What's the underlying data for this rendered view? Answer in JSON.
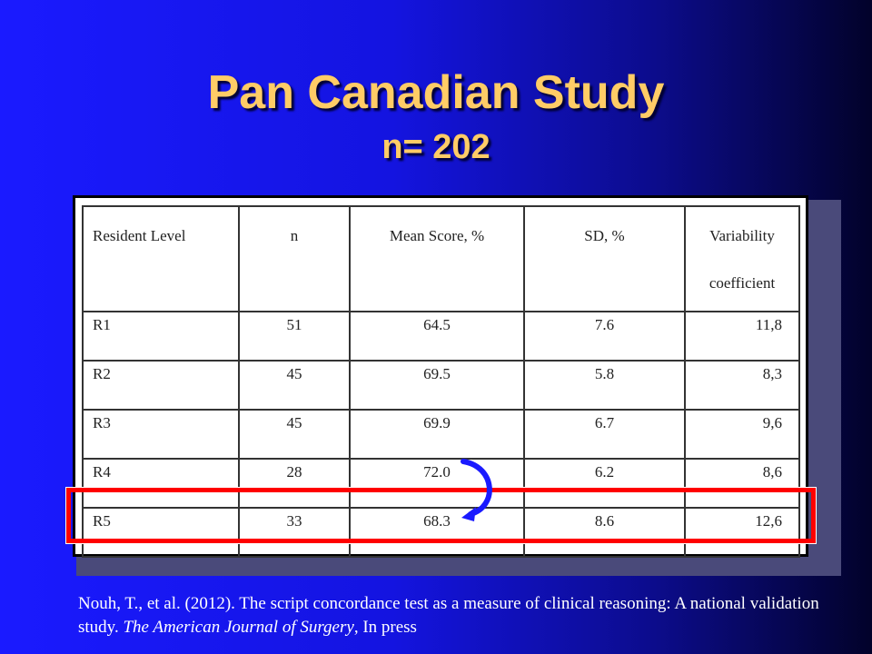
{
  "slide": {
    "title": "Pan Canadian Study",
    "subtitle": "n= 202"
  },
  "table": {
    "headers": [
      "Resident Level",
      "n",
      "Mean Score, %",
      "SD, %",
      "Variability coefficient"
    ],
    "header_variability_line1": "Variability",
    "header_variability_line2": "coefficient",
    "rows": [
      {
        "level": "R1",
        "n": "51",
        "mean": "64.5",
        "sd": "7.6",
        "var": "11,8"
      },
      {
        "level": "R2",
        "n": "45",
        "mean": "69.5",
        "sd": "5.8",
        "var": "8,3"
      },
      {
        "level": "R3",
        "n": "45",
        "mean": "69.9",
        "sd": "6.7",
        "var": "9,6"
      },
      {
        "level": "R4",
        "n": "28",
        "mean": "72.0",
        "sd": "6.2",
        "var": "8,6"
      },
      {
        "level": "R5",
        "n": "33",
        "mean": "68.3",
        "sd": "8.6",
        "var": "12,6"
      }
    ],
    "highlighted_row": "R5"
  },
  "colors": {
    "title": "#ffcc66",
    "highlight": "#ff0000",
    "arrow": "#1a1aff"
  },
  "citation": {
    "prefix": "Nouh, T., et al. (2012). The script concordance test as a measure of clinical reasoning: A national validation study. ",
    "journal": "The American Journal of Surgery",
    "suffix": ", In press"
  }
}
